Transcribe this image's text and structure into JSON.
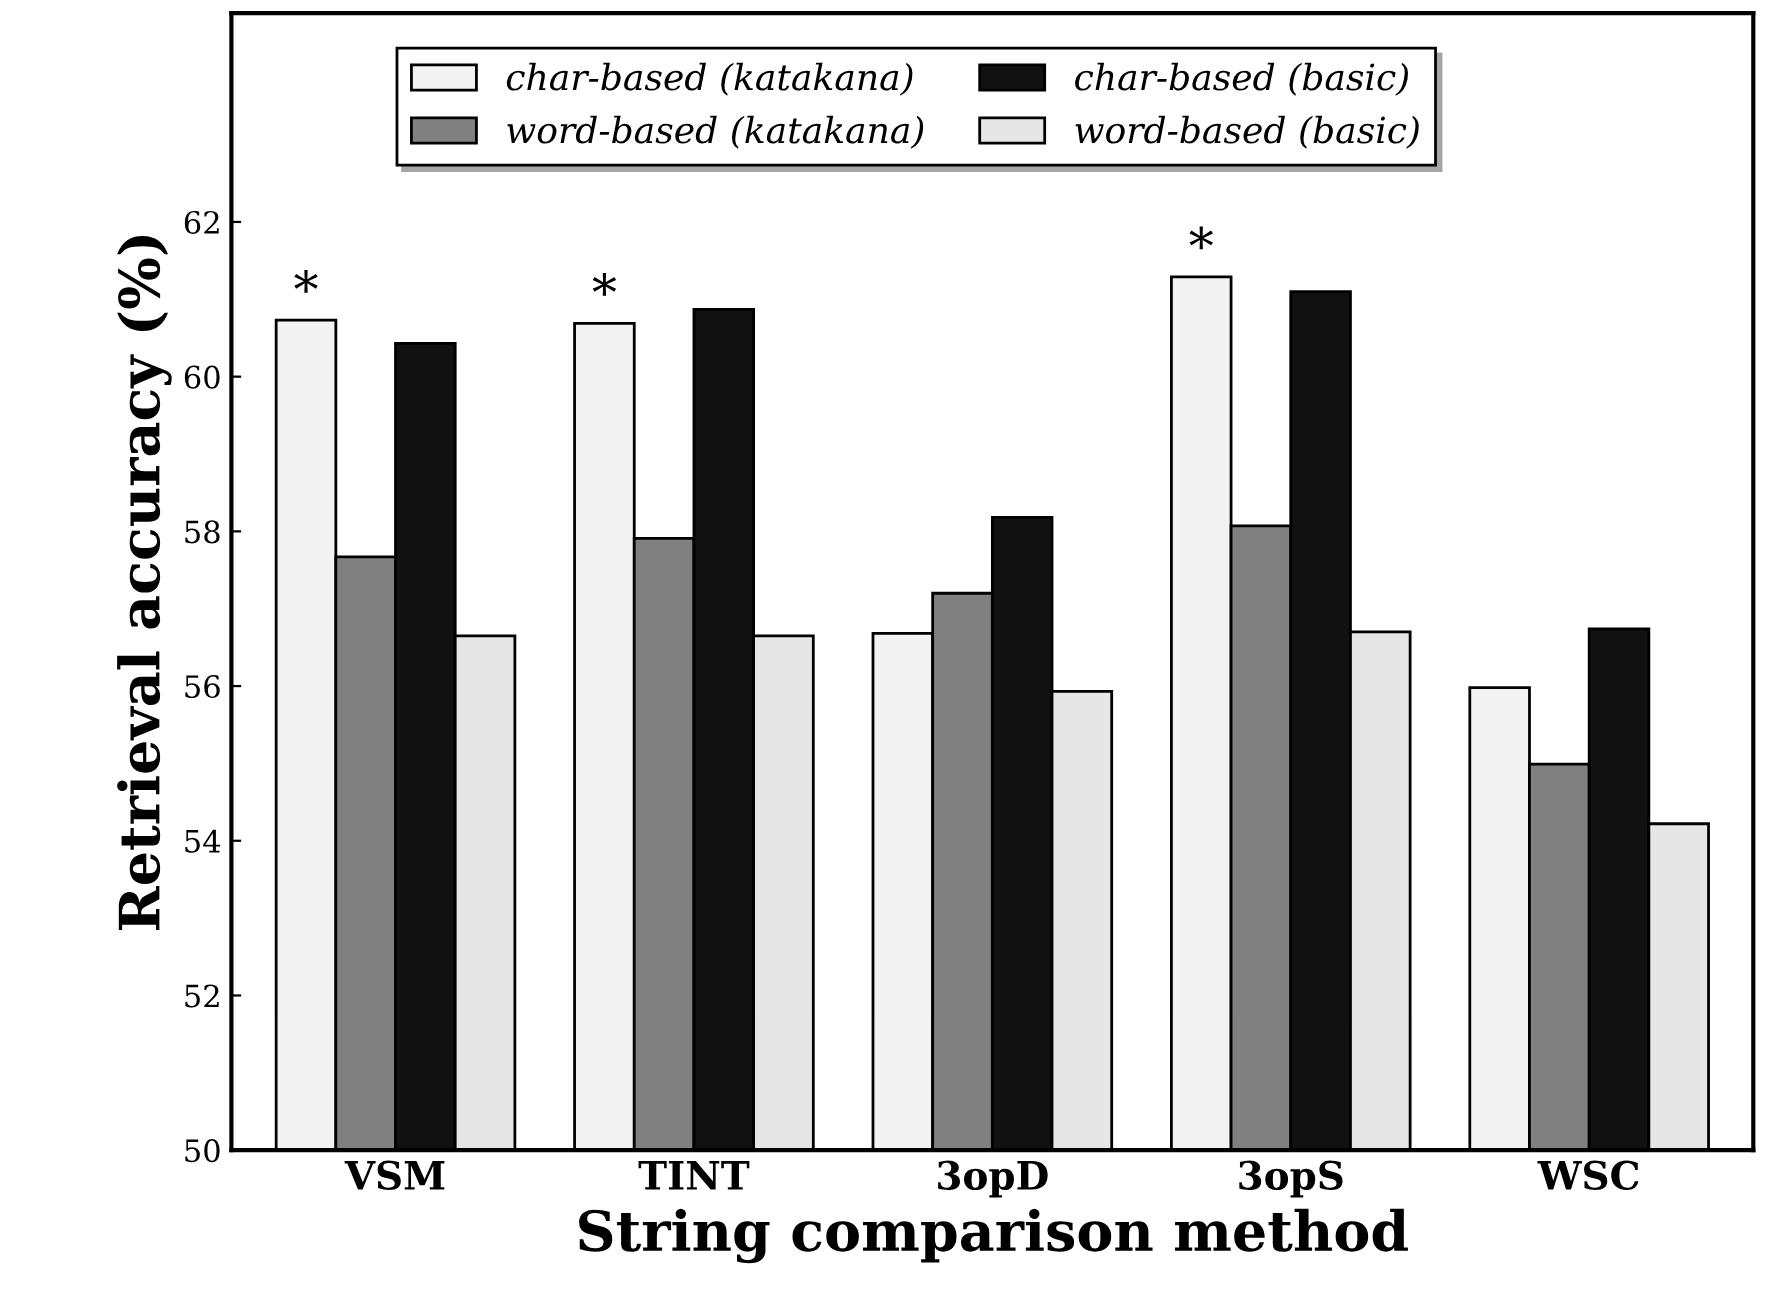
{
  "chart_data": {
    "type": "bar",
    "xlabel": "String comparison method",
    "ylabel": "Retrieval accuracy (%)",
    "categories": [
      "VSM",
      "TINT",
      "3opD",
      "3opS",
      "WSC"
    ],
    "series": [
      {
        "name": "char-based (katakana)",
        "color": "#f2f2f2",
        "values": [
          60.73,
          60.69,
          56.68,
          61.29,
          55.98
        ]
      },
      {
        "name": "word-based (katakana)",
        "color": "#808080",
        "values": [
          57.67,
          57.91,
          57.2,
          58.07,
          54.99
        ]
      },
      {
        "name": "char-based (basic)",
        "color": "#111111",
        "values": [
          60.43,
          60.87,
          58.18,
          61.1,
          56.74
        ]
      },
      {
        "name": "word-based (basic)",
        "color": "#e6e6e6",
        "values": [
          56.65,
          56.65,
          55.93,
          56.7,
          54.22
        ]
      }
    ],
    "annotations": [
      "*",
      "*",
      "*"
    ],
    "ylim": [
      50,
      64.7
    ],
    "yticks": [
      50,
      52,
      54,
      56,
      58,
      60,
      62
    ],
    "grid": false,
    "legend": "top"
  }
}
